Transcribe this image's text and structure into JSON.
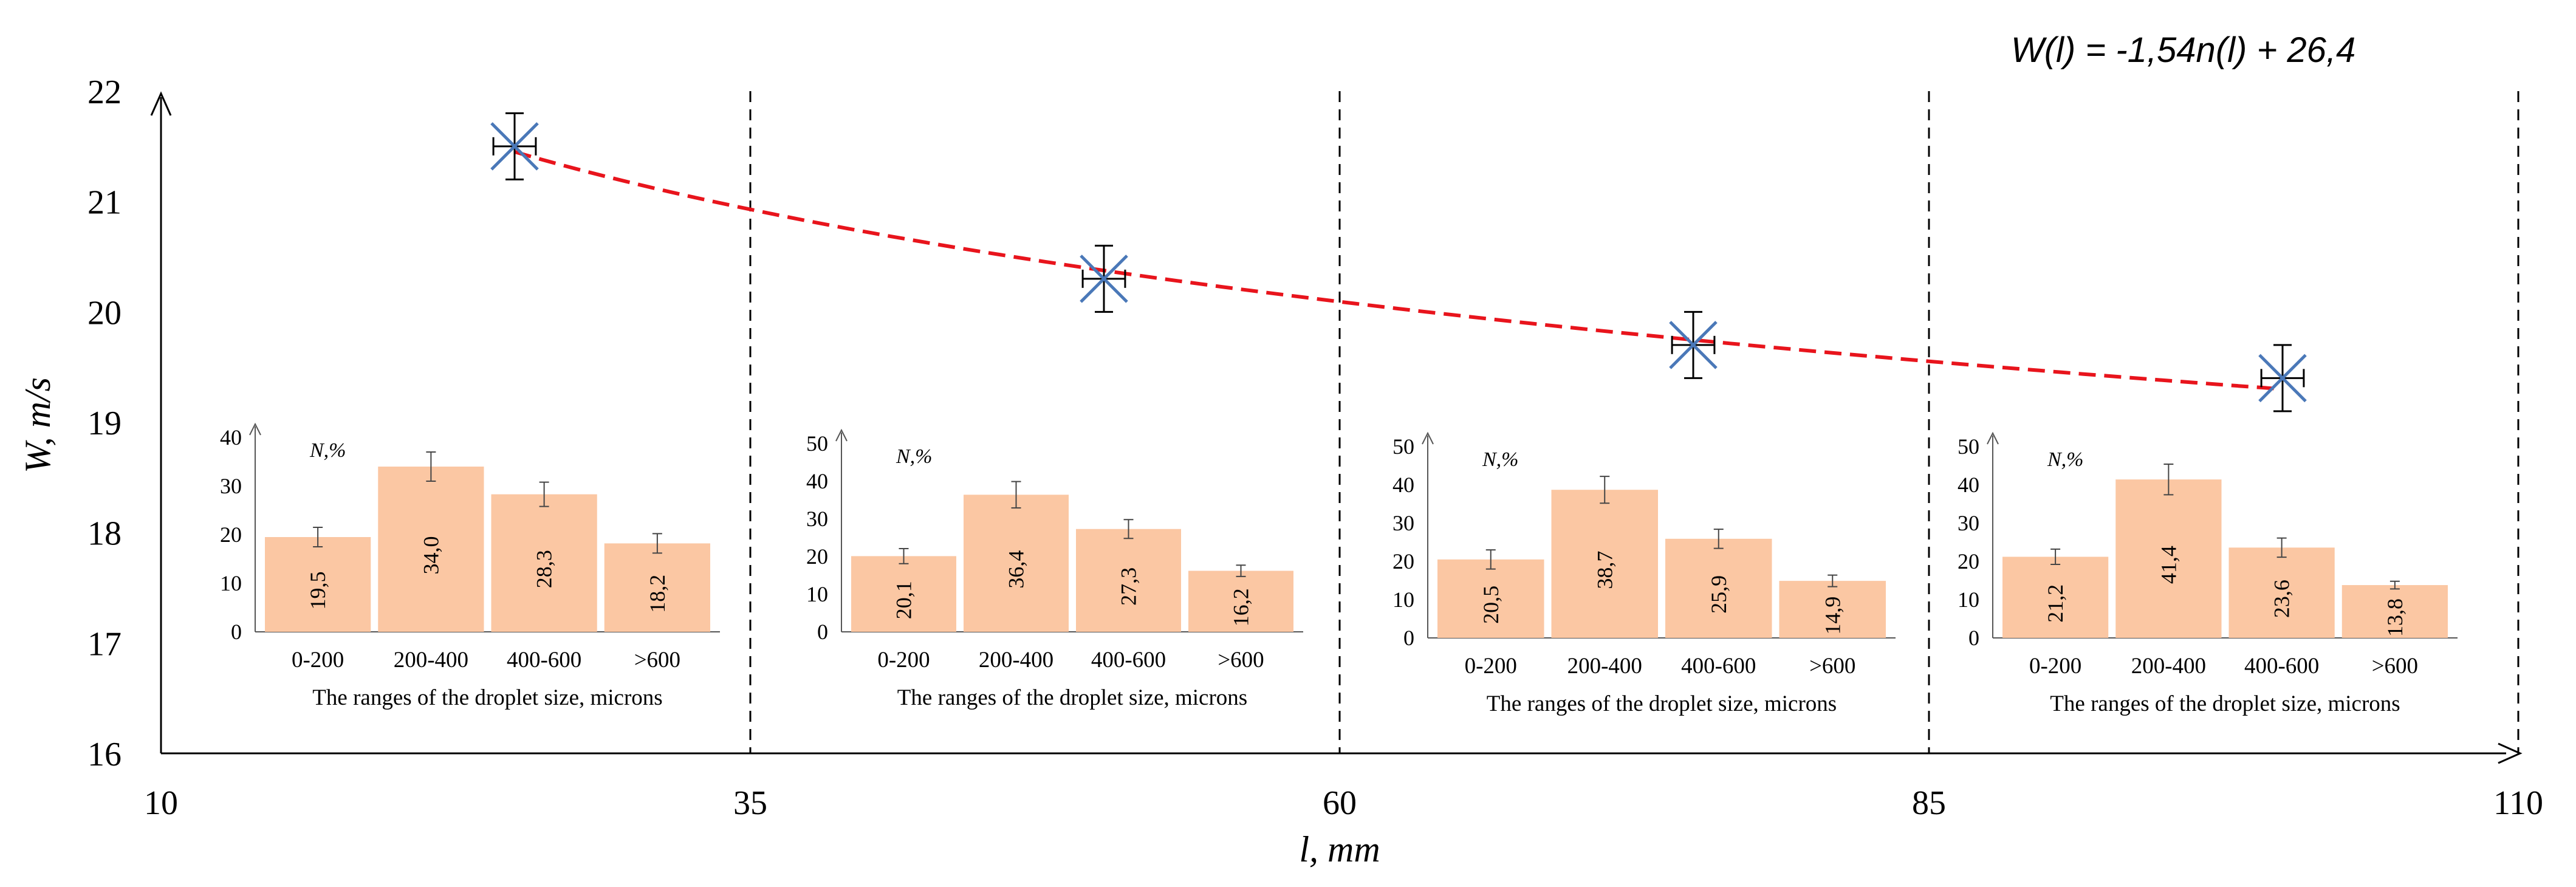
{
  "chart_data": [
    {
      "type": "scatter",
      "xlabel": "l, mm",
      "ylabel": "W, m/s",
      "equation": "W(l)  = -1,54n(l) + 26,4",
      "xticks": [
        "10",
        "35",
        "60",
        "85",
        "110"
      ],
      "xtick_values": [
        10,
        35,
        60,
        85,
        110
      ],
      "yticks": [
        "16",
        "17",
        "18",
        "19",
        "20",
        "21",
        "22"
      ],
      "ytick_values": [
        16,
        17,
        18,
        19,
        20,
        21,
        22
      ],
      "xlim": [
        10,
        110
      ],
      "ylim": [
        16,
        22
      ],
      "section_dividers": [
        35,
        60,
        85,
        110
      ],
      "points": [
        {
          "x": 25,
          "y": 21.5,
          "x_err": 0.9,
          "y_err": 0.3
        },
        {
          "x": 50,
          "y": 20.3,
          "x_err": 0.9,
          "y_err": 0.3
        },
        {
          "x": 75,
          "y": 19.7,
          "x_err": 0.9,
          "y_err": 0.3
        },
        {
          "x": 100,
          "y": 19.4,
          "x_err": 0.9,
          "y_err": 0.3
        }
      ],
      "trendline": {
        "type": "log",
        "color": "#e8141c",
        "x_range": [
          25,
          100
        ],
        "y_range": [
          21.45,
          19.3
        ]
      }
    },
    {
      "type": "bar",
      "ylabel": "N,%",
      "xlabel": "The ranges of the droplet size, microns",
      "categories": [
        "0-200",
        "200-400",
        "400-600",
        ">600"
      ],
      "values": [
        19.5,
        34.0,
        28.3,
        18.2
      ],
      "labels": [
        "19,5",
        "34,0",
        "28,3",
        "18,2"
      ],
      "errors": [
        2,
        3,
        2.5,
        2
      ],
      "ylim": [
        0,
        40
      ],
      "yticks": [
        "0",
        "10",
        "20",
        "30",
        "40"
      ],
      "ytick_values": [
        0,
        10,
        20,
        30,
        40
      ],
      "color": "#fbc7a3"
    },
    {
      "type": "bar",
      "ylabel": "N,%",
      "xlabel": "The ranges of the droplet size, microns",
      "categories": [
        "0-200",
        "200-400",
        "400-600",
        ">600"
      ],
      "values": [
        20.1,
        36.4,
        27.3,
        16.2
      ],
      "labels": [
        "20,1",
        "36,4",
        "27,3",
        "16,2"
      ],
      "errors": [
        2,
        3.5,
        2.5,
        1.5
      ],
      "ylim": [
        0,
        50
      ],
      "yticks": [
        "0",
        "10",
        "20",
        "30",
        "40",
        "50"
      ],
      "ytick_values": [
        0,
        10,
        20,
        30,
        40,
        50
      ],
      "color": "#fbc7a3"
    },
    {
      "type": "bar",
      "ylabel": "N,%",
      "xlabel": "The ranges of the droplet size, microns",
      "categories": [
        "0-200",
        "200-400",
        "400-600",
        ">600"
      ],
      "values": [
        20.5,
        38.7,
        25.9,
        14.9
      ],
      "labels": [
        "20,5",
        "38,7",
        "25,9",
        "14,9"
      ],
      "errors": [
        2.5,
        3.5,
        2.5,
        1.5
      ],
      "ylim": [
        0,
        50
      ],
      "yticks": [
        "0",
        "10",
        "20",
        "30",
        "40",
        "50"
      ],
      "ytick_values": [
        0,
        10,
        20,
        30,
        40,
        50
      ],
      "color": "#fbc7a3"
    },
    {
      "type": "bar",
      "ylabel": "N,%",
      "xlabel": "The ranges of the droplet size, microns",
      "categories": [
        "0-200",
        "200-400",
        "400-600",
        ">600"
      ],
      "values": [
        21.2,
        41.4,
        23.6,
        13.8
      ],
      "labels": [
        "21,2",
        "41,4",
        "23,6",
        "13,8"
      ],
      "errors": [
        2,
        4,
        2.5,
        1
      ],
      "ylim": [
        0,
        50
      ],
      "yticks": [
        "0",
        "10",
        "20",
        "30",
        "40",
        "50"
      ],
      "ytick_values": [
        0,
        10,
        20,
        30,
        40,
        50
      ],
      "color": "#fbc7a3"
    }
  ]
}
